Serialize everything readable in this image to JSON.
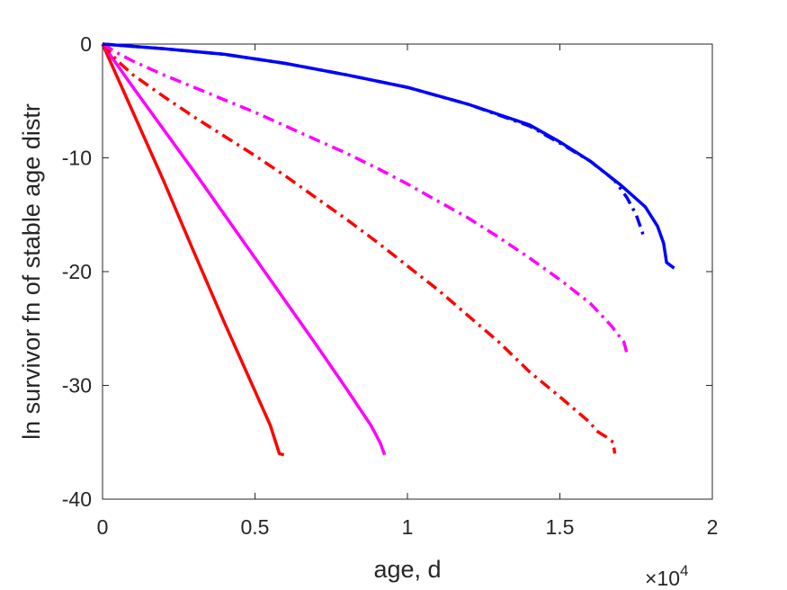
{
  "chart_data": {
    "type": "line",
    "xlabel": "age, d",
    "ylabel": "ln survivor fn of stable age distr",
    "x_multiplier": {
      "base": "×10",
      "exponent": "4"
    },
    "xlim": [
      0,
      20000
    ],
    "ylim": [
      -40,
      0
    ],
    "x_ticks": [
      0,
      5000,
      10000,
      15000,
      20000
    ],
    "x_tick_labels": [
      "0",
      "0.5",
      "1",
      "1.5",
      "2"
    ],
    "y_ticks": [
      0,
      -10,
      -20,
      -30,
      -40
    ],
    "y_tick_labels": [
      "0",
      "-10",
      "-20",
      "-30",
      "-40"
    ],
    "grid": false,
    "legend": "none",
    "series": [
      {
        "color": "#ff0000",
        "dash": "solid",
        "points": [
          [
            0,
            0
          ],
          [
            1000,
            -6
          ],
          [
            2000,
            -12
          ],
          [
            3000,
            -18.3
          ],
          [
            4000,
            -24.5
          ],
          [
            5000,
            -30.5
          ],
          [
            5500,
            -33.5
          ],
          [
            5800,
            -36
          ],
          [
            5950,
            -36.1
          ]
        ]
      },
      {
        "color": "#ff00ff",
        "dash": "solid",
        "points": [
          [
            0,
            0
          ],
          [
            1000,
            -3.8
          ],
          [
            2000,
            -7.5
          ],
          [
            3000,
            -11.2
          ],
          [
            4000,
            -15
          ],
          [
            5000,
            -18.8
          ],
          [
            6000,
            -22.6
          ],
          [
            7000,
            -26.4
          ],
          [
            8000,
            -30.3
          ],
          [
            8800,
            -33.5
          ],
          [
            9100,
            -35
          ],
          [
            9250,
            -36.1
          ]
        ]
      },
      {
        "color": "#ff0000",
        "dash": "dashdot",
        "points": [
          [
            0,
            0
          ],
          [
            500,
            -1.5
          ],
          [
            1000,
            -2.7
          ],
          [
            2000,
            -4.6
          ],
          [
            3000,
            -6.4
          ],
          [
            4000,
            -8.1
          ],
          [
            5000,
            -9.8
          ],
          [
            6000,
            -11.6
          ],
          [
            7000,
            -13.5
          ],
          [
            8000,
            -15.4
          ],
          [
            9000,
            -17.4
          ],
          [
            10000,
            -19.5
          ],
          [
            11000,
            -21.6
          ],
          [
            12000,
            -23.9
          ],
          [
            13000,
            -26.2
          ],
          [
            14000,
            -28.8
          ],
          [
            15000,
            -31
          ],
          [
            16000,
            -33.3
          ],
          [
            16200,
            -34
          ],
          [
            16500,
            -34.5
          ],
          [
            16750,
            -35
          ],
          [
            16800,
            -36
          ]
        ]
      },
      {
        "color": "#ff00ff",
        "dash": "dashdot",
        "points": [
          [
            0,
            0
          ],
          [
            500,
            -0.8
          ],
          [
            1000,
            -1.5
          ],
          [
            2000,
            -2.7
          ],
          [
            3000,
            -3.8
          ],
          [
            4000,
            -4.9
          ],
          [
            5000,
            -6
          ],
          [
            6000,
            -7.2
          ],
          [
            7000,
            -8.4
          ],
          [
            8000,
            -9.6
          ],
          [
            9000,
            -10.9
          ],
          [
            10000,
            -12.3
          ],
          [
            11000,
            -13.8
          ],
          [
            12000,
            -15.3
          ],
          [
            13000,
            -17
          ],
          [
            14000,
            -18.8
          ],
          [
            15000,
            -20.7
          ],
          [
            16000,
            -22.8
          ],
          [
            16700,
            -24.8
          ],
          [
            17100,
            -26.2
          ],
          [
            17200,
            -27.2
          ]
        ]
      },
      {
        "color": "#0000ff",
        "dash": "dashdot",
        "points": [
          [
            0,
            0
          ],
          [
            2000,
            -0.4
          ],
          [
            4000,
            -0.9
          ],
          [
            6000,
            -1.7
          ],
          [
            8000,
            -2.7
          ],
          [
            10000,
            -3.8
          ],
          [
            12000,
            -5.3
          ],
          [
            14000,
            -7.2
          ],
          [
            15000,
            -8.7
          ],
          [
            16000,
            -10.3
          ],
          [
            16800,
            -12
          ],
          [
            17200,
            -13.5
          ],
          [
            17500,
            -15
          ],
          [
            17700,
            -16.5
          ],
          [
            17750,
            -17
          ]
        ]
      },
      {
        "color": "#0000ff",
        "dash": "solid",
        "points": [
          [
            0,
            0
          ],
          [
            2000,
            -0.4
          ],
          [
            4000,
            -0.9
          ],
          [
            6000,
            -1.7
          ],
          [
            8000,
            -2.7
          ],
          [
            10000,
            -3.8
          ],
          [
            12000,
            -5.3
          ],
          [
            14000,
            -7.1
          ],
          [
            15000,
            -8.6
          ],
          [
            16000,
            -10.3
          ],
          [
            17000,
            -12.4
          ],
          [
            17800,
            -14.3
          ],
          [
            18200,
            -16
          ],
          [
            18400,
            -17.5
          ],
          [
            18500,
            -19.2
          ],
          [
            18750,
            -19.7
          ]
        ]
      }
    ]
  }
}
